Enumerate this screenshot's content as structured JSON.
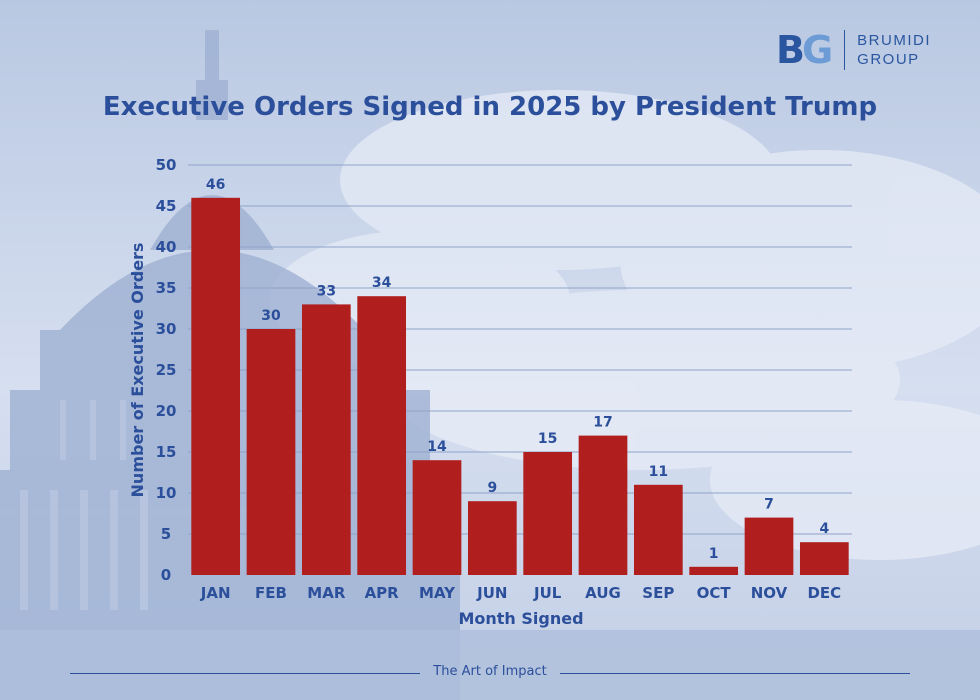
{
  "brand": {
    "mark_b": "B",
    "mark_g": "G",
    "line1": "BRUMIDI",
    "line2": "GROUP"
  },
  "footer": {
    "tagline": "The Art of Impact"
  },
  "colors": {
    "bar": "#b01e1e",
    "text": "#2b4f9a",
    "grid": "#8fa3c8"
  },
  "chart_data": {
    "type": "bar",
    "title": "Executive Orders Signed in 2025 by President Trump",
    "xlabel": "Month Signed",
    "ylabel": "Number of Executive Orders",
    "categories": [
      "JAN",
      "FEB",
      "MAR",
      "APR",
      "MAY",
      "JUN",
      "JUL",
      "AUG",
      "SEP",
      "OCT",
      "NOV",
      "DEC"
    ],
    "values": [
      46,
      30,
      33,
      34,
      14,
      9,
      15,
      17,
      11,
      1,
      7,
      4
    ],
    "ylim": [
      0,
      50
    ],
    "yticks": [
      0,
      5,
      10,
      15,
      20,
      25,
      30,
      35,
      40,
      45,
      50
    ],
    "grid": true
  }
}
